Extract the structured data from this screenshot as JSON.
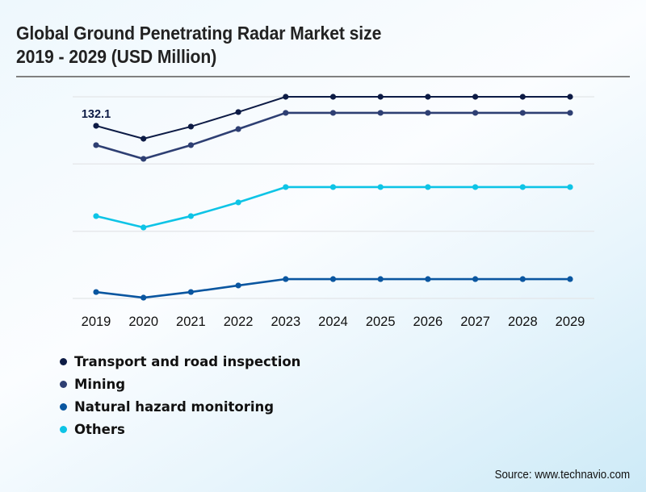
{
  "title_lines": [
    "Global Ground Penetrating Radar Market size",
    "2019 - 2029 (USD Million)"
  ],
  "source": "Source: www.technavio.com",
  "chart_data": {
    "type": "line",
    "title": "Global Ground Penetrating Radar Market size 2019 - 2029 (USD Million)",
    "xlabel": "",
    "ylabel": "",
    "x": [
      "2019",
      "2020",
      "2021",
      "2022",
      "2023",
      "2024",
      "2025",
      "2026",
      "2027",
      "2028",
      "2029"
    ],
    "ylim": [
      0,
      154.3
    ],
    "gridlines": [
      0,
      51.4,
      102.9,
      154.3
    ],
    "grid": true,
    "y_axis_labels_visible": false,
    "legend_position": "bottom-left",
    "series": [
      {
        "name": "Transport and road inspection",
        "color": "#0d1b45",
        "values": [
          132.1,
          122.2,
          131.5,
          142.6,
          154.3,
          154.3,
          154.3,
          154.3,
          154.3,
          154.3,
          154.3
        ]
      },
      {
        "name": "Mining",
        "color": "#2e3f73",
        "values": [
          117.3,
          106.8,
          117.3,
          129.6,
          142.0,
          142.0,
          142.0,
          142.0,
          142.0,
          142.0,
          142.0
        ]
      },
      {
        "name": "Natural hazard monitoring",
        "color": "#0a56a0",
        "values": [
          4.9,
          0.6,
          4.9,
          9.9,
          14.8,
          14.8,
          14.8,
          14.8,
          14.8,
          14.8,
          14.8
        ]
      },
      {
        "name": "Others",
        "color": "#0ec4e6",
        "values": [
          63.0,
          54.3,
          63.0,
          73.5,
          85.2,
          85.2,
          85.2,
          85.2,
          85.2,
          85.2,
          85.2
        ]
      }
    ],
    "annotations": [
      {
        "series": "Transport and road inspection",
        "x": "2019",
        "text": "132.1"
      }
    ]
  }
}
